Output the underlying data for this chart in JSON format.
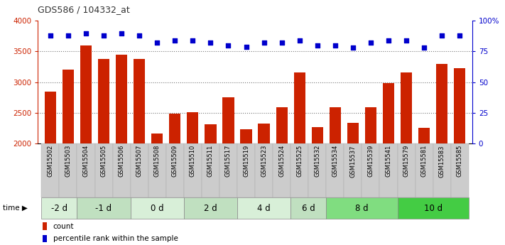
{
  "title": "GDS586 / 104332_at",
  "samples": [
    "GSM15502",
    "GSM15503",
    "GSM15504",
    "GSM15505",
    "GSM15506",
    "GSM15507",
    "GSM15508",
    "GSM15509",
    "GSM15510",
    "GSM15511",
    "GSM15517",
    "GSM15519",
    "GSM15523",
    "GSM15524",
    "GSM15525",
    "GSM15532",
    "GSM15534",
    "GSM15537",
    "GSM15539",
    "GSM15541",
    "GSM15579",
    "GSM15581",
    "GSM15583",
    "GSM15585"
  ],
  "counts": [
    2850,
    3200,
    3600,
    3380,
    3450,
    3380,
    2160,
    2480,
    2510,
    2310,
    2750,
    2230,
    2320,
    2590,
    3160,
    2260,
    2590,
    2330,
    2590,
    2980,
    3160,
    2250,
    3300,
    3230
  ],
  "percentile_ranks": [
    88,
    88,
    90,
    88,
    90,
    88,
    82,
    84,
    84,
    82,
    80,
    79,
    82,
    82,
    84,
    80,
    80,
    78,
    82,
    84,
    84,
    78,
    88,
    88
  ],
  "time_groups": [
    {
      "label": "-2 d",
      "start": 0,
      "end": 2,
      "color": "#d8efd8"
    },
    {
      "label": "-1 d",
      "start": 2,
      "end": 5,
      "color": "#c0e0c0"
    },
    {
      "label": "0 d",
      "start": 5,
      "end": 8,
      "color": "#d8efd8"
    },
    {
      "label": "2 d",
      "start": 8,
      "end": 11,
      "color": "#c0e0c0"
    },
    {
      "label": "4 d",
      "start": 11,
      "end": 14,
      "color": "#d8efd8"
    },
    {
      "label": "6 d",
      "start": 14,
      "end": 16,
      "color": "#c0e0c0"
    },
    {
      "label": "8 d",
      "start": 16,
      "end": 20,
      "color": "#80dd80"
    },
    {
      "label": "10 d",
      "start": 20,
      "end": 24,
      "color": "#44cc44"
    }
  ],
  "bar_color": "#cc2200",
  "dot_color": "#0000cc",
  "ylim_left": [
    2000,
    4000
  ],
  "ylim_right": [
    0,
    100
  ],
  "left_yticks": [
    2000,
    2500,
    3000,
    3500,
    4000
  ],
  "right_yticks": [
    0,
    25,
    50,
    75,
    100
  ],
  "right_yticklabels": [
    "0",
    "25",
    "50",
    "75",
    "100%"
  ],
  "grid_yticks": [
    2500,
    3000,
    3500
  ],
  "sample_label_bg": "#cccccc",
  "sample_label_alt_bg": "#dddddd"
}
